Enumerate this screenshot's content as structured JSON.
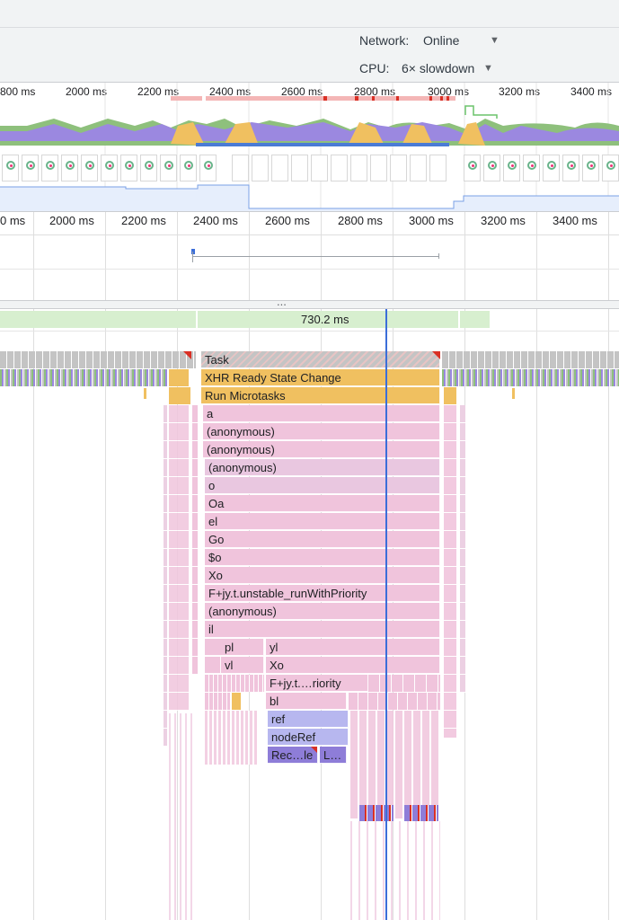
{
  "toolbar": {
    "network_label": "Network:",
    "network_value": "Online",
    "cpu_label": "CPU:",
    "cpu_value": "6× slowdown"
  },
  "overview": {
    "ticks": [
      "800 ms",
      "2000 ms",
      "2200 ms",
      "2400 ms",
      "2600 ms",
      "2800 ms",
      "3000 ms",
      "3200 ms",
      "3400 ms"
    ]
  },
  "main": {
    "ticks": [
      "0 ms",
      "2000 ms",
      "2200 ms",
      "2400 ms",
      "2600 ms",
      "2800 ms",
      "3000 ms",
      "3200 ms",
      "3400 ms"
    ],
    "splitter": "...",
    "interaction_duration": "730.2 ms"
  },
  "flame": {
    "task": "Task",
    "xhr": "XHR Ready State Change",
    "microtasks": "Run Microtasks",
    "stack": [
      "a",
      "(anonymous)",
      "(anonymous)",
      "(anonymous)",
      "o",
      "Oa",
      "el",
      "Go",
      "$o",
      "Xo",
      "F+jy.t.unstable_runWithPriority",
      "(anonymous)",
      "il"
    ],
    "pl": "pl",
    "yl": "yl",
    "vl": "vl",
    "xo2": "Xo",
    "fjy_short": "F+jy.t.…riority",
    "bl": "bl",
    "ref": "ref",
    "noderef": "nodeRef",
    "rec": "Rec…le",
    "l": "L…"
  },
  "colors": {
    "task": "#c4c4c4",
    "xhr": "#f0c060",
    "script": "#f0c4dc",
    "ref": "#b7b7ef",
    "rec": "#8e7dd8",
    "cursor": "#3b6ed9",
    "interaction": "#d7efcf"
  }
}
